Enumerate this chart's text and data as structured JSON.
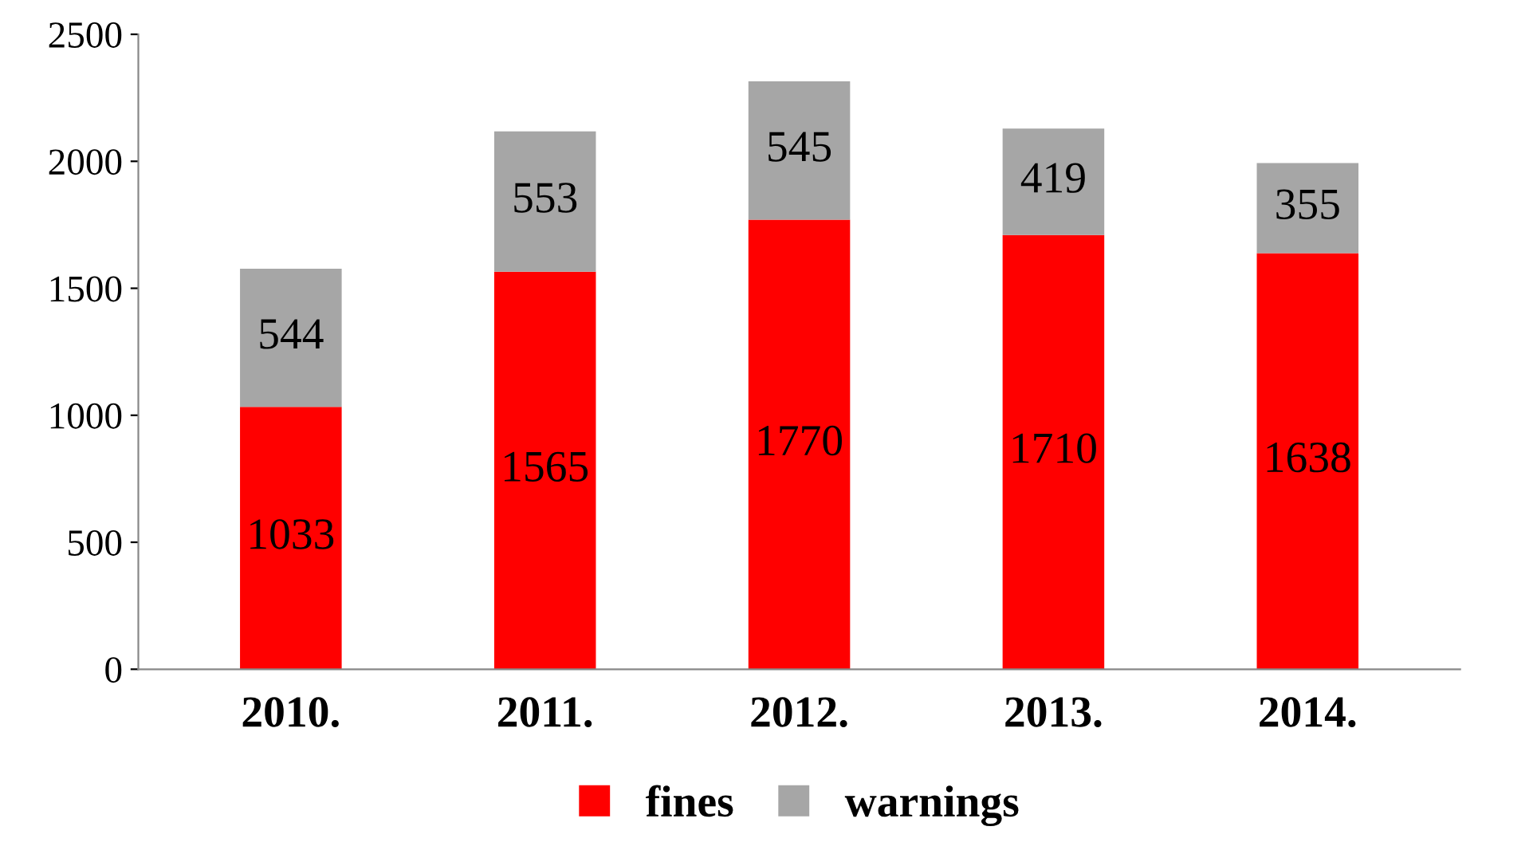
{
  "chart_data": {
    "type": "bar",
    "stacked": true,
    "categories": [
      "2010.",
      "2011.",
      "2012.",
      "2013.",
      "2014."
    ],
    "series": [
      {
        "name": "fines",
        "color": "#ff0000",
        "values": [
          1033,
          1565,
          1770,
          1710,
          1638
        ]
      },
      {
        "name": "warnings",
        "color": "#a6a6a6",
        "values": [
          544,
          553,
          545,
          419,
          355
        ]
      }
    ],
    "ylim": [
      0,
      2500
    ],
    "yticks": [
      0,
      500,
      1000,
      1500,
      2000,
      2500
    ],
    "data_labels": true,
    "legend": "bottom",
    "grid": false
  }
}
